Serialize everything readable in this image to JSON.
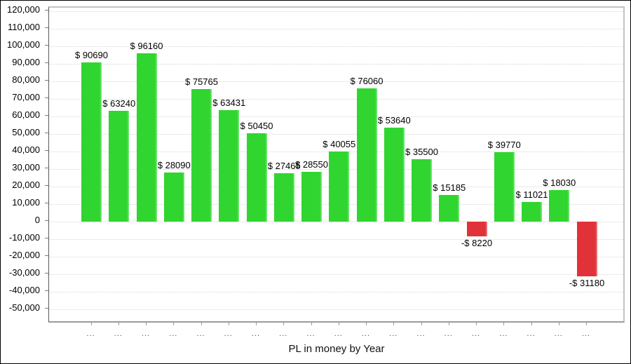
{
  "chart_data": {
    "type": "bar",
    "title": "",
    "xlabel": "PL in money by Year",
    "ylabel": "",
    "categories": [
      "...",
      "...",
      "...",
      "...",
      "...",
      "...",
      "...",
      "...",
      "...",
      "...",
      "...",
      "...",
      "...",
      "...",
      "...",
      "...",
      "...",
      "...",
      "..."
    ],
    "values": [
      90690,
      63240,
      96160,
      28090,
      75765,
      63431,
      50450,
      27465,
      28550,
      40055,
      76060,
      53640,
      35500,
      15185,
      -8220,
      39770,
      11021,
      18030,
      -31180
    ],
    "bar_labels": [
      "$ 90690",
      "$ 63240",
      "$ 96160",
      "$ 28090",
      "$ 75765",
      "$ 63431",
      "$ 50450",
      "$ 27465",
      "$ 28550",
      "$ 40055",
      "$ 76060",
      "$ 53640",
      "$ 35500",
      "$ 15185",
      "-$ 8220",
      "$ 39770",
      "$ 11021",
      "$ 18030",
      "-$ 31180"
    ],
    "ylim": [
      -50000,
      120000
    ],
    "ytick_step": 10000,
    "ytick_labels": [
      "120,000",
      "110,000",
      "100,000",
      "90,000",
      "80,000",
      "70,000",
      "60,000",
      "50,000",
      "40,000",
      "30,000",
      "20,000",
      "10,000",
      "0",
      "-10,000",
      "-20,000",
      "-30,000",
      "-40,000",
      "-50,000"
    ],
    "ytick_values": [
      120000,
      110000,
      100000,
      90000,
      80000,
      70000,
      60000,
      50000,
      40000,
      30000,
      20000,
      10000,
      0,
      -10000,
      -20000,
      -30000,
      -40000,
      -50000
    ],
    "grid": true,
    "legend": "none",
    "colors": {
      "positive_bar": "#30d530",
      "positive_bar_edge": "#7fe97f",
      "negative_bar": "#e03238",
      "negative_bar_edge": "#ef8a8d",
      "gridline": "#d6d6d6",
      "axis_line": "#9b9b9b",
      "label_text": "#000000",
      "xtick_text": "#4a4a4a"
    }
  }
}
